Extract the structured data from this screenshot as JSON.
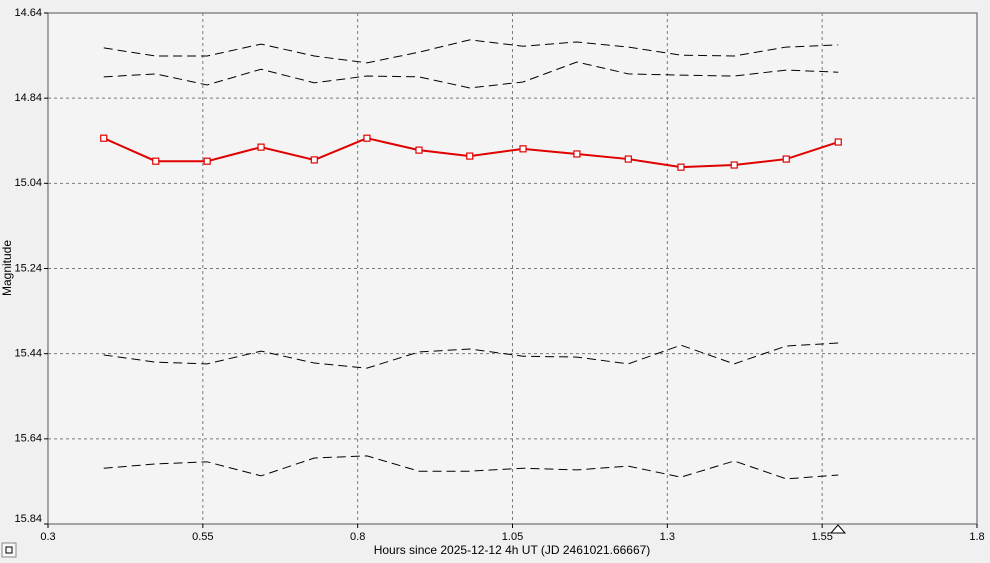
{
  "chart_data": {
    "type": "line",
    "x_label": "Hours since 2025-12-12 4h UT (JD 2461021.66667)",
    "y_label": "Magnitude",
    "xlim": [
      0.3,
      1.8
    ],
    "xticks": [
      0.3,
      0.55,
      0.8,
      1.05,
      1.3,
      1.55,
      1.8
    ],
    "ylim": [
      15.84,
      14.64
    ],
    "yticks": [
      14.64,
      14.84,
      15.04,
      15.24,
      15.44,
      15.64,
      15.84
    ],
    "grid": true,
    "x": [
      0.39,
      0.474,
      0.557,
      0.644,
      0.73,
      0.815,
      0.899,
      0.981,
      1.067,
      1.154,
      1.237,
      1.322,
      1.408,
      1.492,
      1.576
    ],
    "series": [
      {
        "color": "#000000",
        "style": "dashed",
        "values": [
          14.722,
          14.741,
          14.741,
          14.713,
          14.741,
          14.757,
          14.732,
          14.703,
          14.718,
          14.708,
          14.72,
          14.739,
          14.741,
          14.72,
          14.715
        ]
      },
      {
        "color": "#000000",
        "style": "dashed",
        "values": [
          14.79,
          14.783,
          14.809,
          14.772,
          14.804,
          14.788,
          14.79,
          14.816,
          14.802,
          14.755,
          14.783,
          14.786,
          14.788,
          14.774,
          14.779
        ]
      },
      {
        "color": "#e00000",
        "style": "solid",
        "markers": true,
        "values": [
          14.934,
          14.988,
          14.988,
          14.955,
          14.985,
          14.934,
          14.962,
          14.976,
          14.959,
          14.971,
          14.983,
          15.002,
          14.997,
          14.983,
          14.943
        ]
      },
      {
        "color": "#000000",
        "style": "dashed",
        "values": [
          15.443,
          15.46,
          15.464,
          15.434,
          15.462,
          15.474,
          15.436,
          15.429,
          15.446,
          15.448,
          15.464,
          15.42,
          15.464,
          15.422,
          15.415
        ]
      },
      {
        "color": "#000000",
        "style": "dashed",
        "values": [
          15.709,
          15.699,
          15.694,
          15.727,
          15.685,
          15.68,
          15.716,
          15.716,
          15.709,
          15.713,
          15.704,
          15.73,
          15.692,
          15.734,
          15.725
        ]
      }
    ]
  }
}
